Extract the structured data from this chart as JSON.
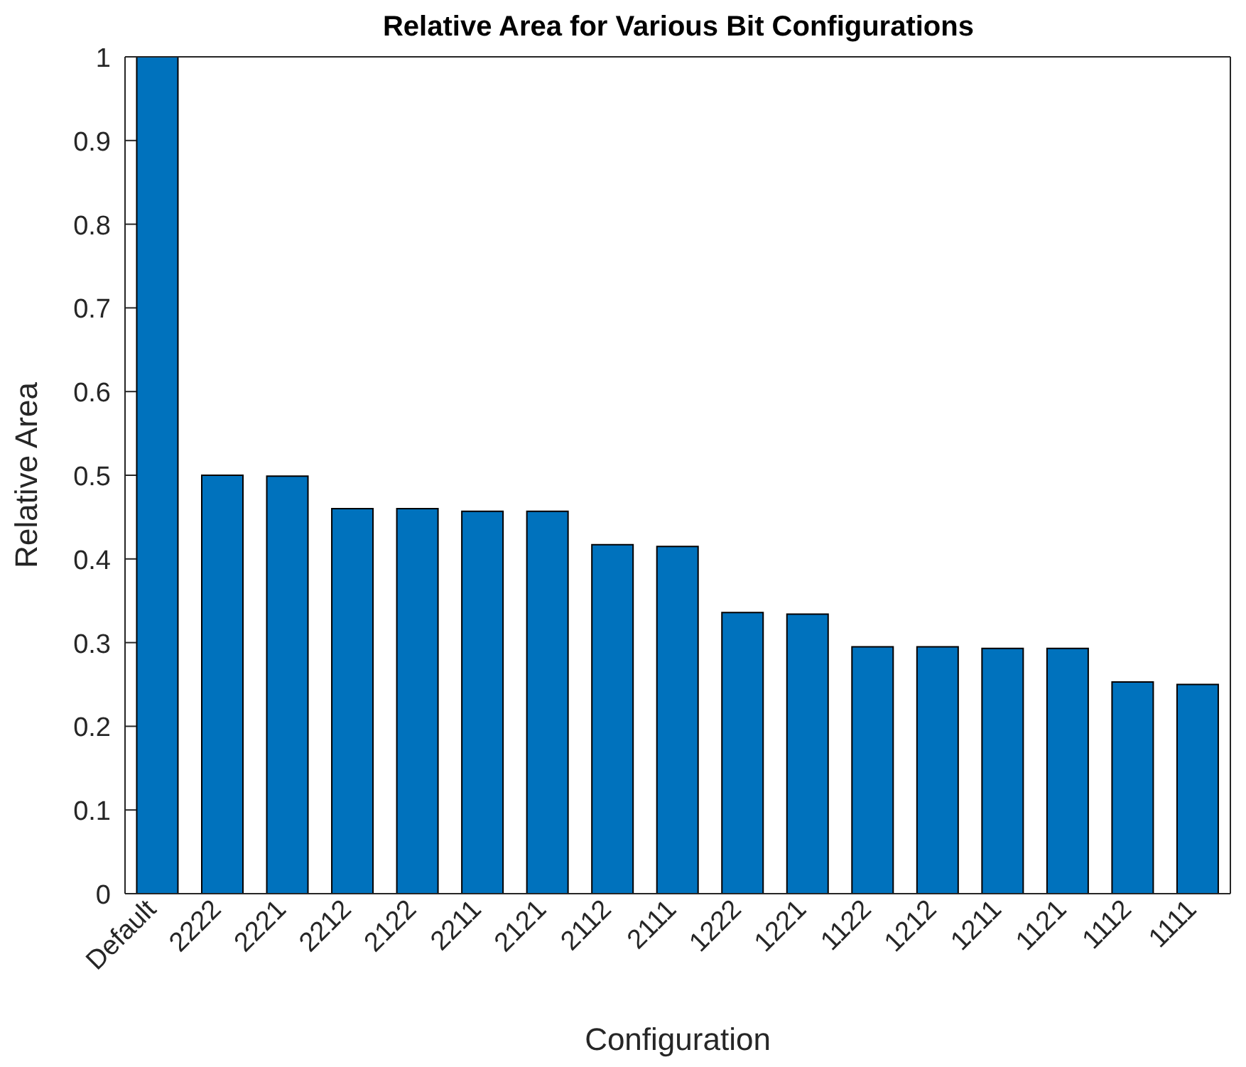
{
  "chart_data": {
    "type": "bar",
    "title": "Relative Area for Various Bit Configurations",
    "xlabel": "Configuration",
    "ylabel": "Relative Area",
    "categories": [
      "Default",
      "2222",
      "2221",
      "2212",
      "2122",
      "2211",
      "2121",
      "2112",
      "2111",
      "1222",
      "1221",
      "1122",
      "1212",
      "1211",
      "1121",
      "1112",
      "1111"
    ],
    "values": [
      1,
      0.5,
      0.499,
      0.46,
      0.46,
      0.457,
      0.457,
      0.417,
      0.415,
      0.336,
      0.334,
      0.295,
      0.295,
      0.293,
      0.293,
      0.253,
      0.25
    ],
    "color": "#0072bd",
    "ylim": [
      0,
      1
    ],
    "yticks": [
      0,
      0.1,
      0.2,
      0.3,
      0.4,
      0.5,
      0.6,
      0.7,
      0.8,
      0.9,
      1
    ],
    "grid": false,
    "legend": false
  }
}
